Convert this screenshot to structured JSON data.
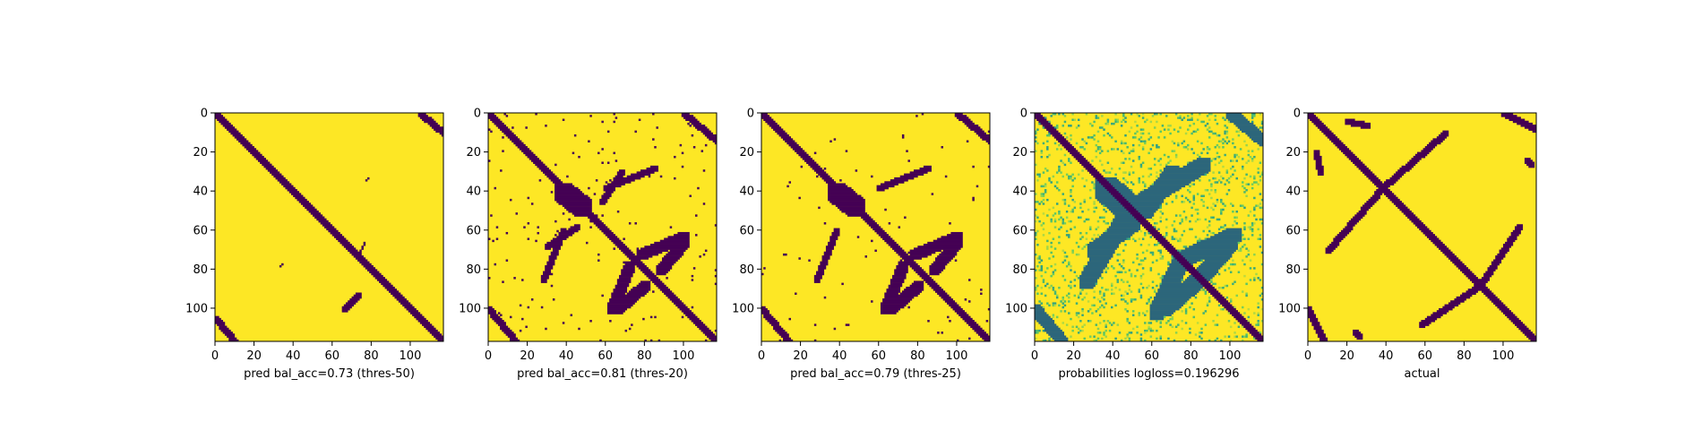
{
  "colors": {
    "low": "#440154",
    "mid_low": "#21918c",
    "mid": "#5ec962",
    "high": "#fde725",
    "frame": "#000000"
  },
  "chart_data": [
    {
      "type": "heatmap",
      "xlabel": "pred bal_acc=0.73 (thres-50)",
      "xlim": [
        0,
        117
      ],
      "ylim": [
        117,
        0
      ],
      "xticks": [
        0,
        20,
        40,
        60,
        80,
        100
      ],
      "yticks": [
        0,
        20,
        40,
        60,
        80,
        100
      ],
      "tick_labels": [
        "0",
        "20",
        "40",
        "60",
        "80",
        "100"
      ],
      "matrix_size": 117,
      "diagonal_width": 2,
      "off_diagonal_segments": [
        {
          "x0": 105,
          "y0": 0,
          "x1": 117,
          "y1": 10,
          "w": 1
        },
        {
          "x0": 0,
          "y0": 105,
          "x1": 10,
          "y1": 117,
          "w": 1
        },
        {
          "x0": 68,
          "y0": 68,
          "x1": 73,
          "y1": 73,
          "w": 1
        },
        {
          "x0": 73,
          "y0": 73,
          "x1": 76,
          "y1": 66,
          "w": 0
        },
        {
          "x0": 66,
          "y0": 100,
          "x1": 73,
          "y1": 93,
          "w": 1
        },
        {
          "x0": 33,
          "y0": 78,
          "x1": 34,
          "y1": 77,
          "w": 0
        },
        {
          "x0": 78,
          "y0": 33,
          "x1": 77,
          "y1": 34,
          "w": 0
        }
      ],
      "noise_level": 0
    },
    {
      "type": "heatmap",
      "xlabel": "pred bal_acc=0.81 (thres-20)",
      "xlim": [
        0,
        117
      ],
      "ylim": [
        117,
        0
      ],
      "xticks": [
        0,
        20,
        40,
        60,
        80,
        100
      ],
      "yticks": [
        0,
        20,
        40,
        60,
        80,
        100
      ],
      "tick_labels": [
        "0",
        "20",
        "40",
        "60",
        "80",
        "100"
      ],
      "matrix_size": 117,
      "diagonal_width": 2,
      "off_diagonal_segments": [
        {
          "x0": 100,
          "y0": 0,
          "x1": 117,
          "y1": 14,
          "w": 1
        },
        {
          "x0": 0,
          "y0": 100,
          "x1": 14,
          "y1": 117,
          "w": 1
        },
        {
          "x0": 30,
          "y0": 68,
          "x1": 45,
          "y1": 58,
          "w": 1
        },
        {
          "x0": 60,
          "y0": 38,
          "x1": 85,
          "y1": 28,
          "w": 1
        },
        {
          "x0": 68,
          "y0": 30,
          "x1": 58,
          "y1": 45,
          "w": 1
        },
        {
          "x0": 38,
          "y0": 60,
          "x1": 28,
          "y1": 85,
          "w": 1
        },
        {
          "x0": 66,
          "y0": 100,
          "x1": 80,
          "y1": 88,
          "w": 2
        },
        {
          "x0": 100,
          "y0": 66,
          "x1": 88,
          "y1": 80,
          "w": 2
        },
        {
          "x0": 78,
          "y0": 72,
          "x1": 100,
          "y1": 63,
          "w": 2
        },
        {
          "x0": 72,
          "y0": 78,
          "x1": 63,
          "y1": 100,
          "w": 2
        },
        {
          "x0": 38,
          "y0": 40,
          "x1": 48,
          "y1": 48,
          "w": 4
        }
      ],
      "noise_level": 2
    },
    {
      "type": "heatmap",
      "xlabel": "pred bal_acc=0.79 (thres-25)",
      "xlim": [
        0,
        117
      ],
      "ylim": [
        117,
        0
      ],
      "xticks": [
        0,
        20,
        40,
        60,
        80,
        100
      ],
      "yticks": [
        0,
        20,
        40,
        60,
        80,
        100
      ],
      "tick_labels": [
        "0",
        "20",
        "40",
        "60",
        "80",
        "100"
      ],
      "matrix_size": 117,
      "diagonal_width": 2,
      "off_diagonal_segments": [
        {
          "x0": 100,
          "y0": 0,
          "x1": 117,
          "y1": 14,
          "w": 1
        },
        {
          "x0": 0,
          "y0": 100,
          "x1": 14,
          "y1": 117,
          "w": 1
        },
        {
          "x0": 60,
          "y0": 38,
          "x1": 85,
          "y1": 28,
          "w": 1
        },
        {
          "x0": 38,
          "y0": 60,
          "x1": 28,
          "y1": 85,
          "w": 1
        },
        {
          "x0": 66,
          "y0": 100,
          "x1": 80,
          "y1": 88,
          "w": 2
        },
        {
          "x0": 100,
          "y0": 66,
          "x1": 88,
          "y1": 80,
          "w": 2
        },
        {
          "x0": 78,
          "y0": 72,
          "x1": 100,
          "y1": 63,
          "w": 2
        },
        {
          "x0": 72,
          "y0": 78,
          "x1": 63,
          "y1": 100,
          "w": 2
        },
        {
          "x0": 38,
          "y0": 40,
          "x1": 48,
          "y1": 48,
          "w": 4
        }
      ],
      "noise_level": 1
    },
    {
      "type": "heatmap",
      "xlabel": "probabilities logloss=0.196296",
      "xlim": [
        0,
        117
      ],
      "ylim": [
        117,
        0
      ],
      "xticks": [
        0,
        20,
        40,
        60,
        80,
        100
      ],
      "yticks": [
        0,
        20,
        40,
        60,
        80,
        100
      ],
      "tick_labels": [
        "0",
        "20",
        "40",
        "60",
        "80",
        "100"
      ],
      "matrix_size": 117,
      "diagonal_width": 2,
      "off_diagonal_segments": [
        {
          "x0": 100,
          "y0": 0,
          "x1": 117,
          "y1": 14,
          "w": 2
        },
        {
          "x0": 0,
          "y0": 100,
          "x1": 14,
          "y1": 117,
          "w": 2
        },
        {
          "x0": 30,
          "y0": 70,
          "x1": 50,
          "y1": 56,
          "w": 3
        },
        {
          "x0": 56,
          "y0": 44,
          "x1": 86,
          "y1": 26,
          "w": 3
        },
        {
          "x0": 70,
          "y0": 30,
          "x1": 56,
          "y1": 50,
          "w": 3
        },
        {
          "x0": 44,
          "y0": 56,
          "x1": 26,
          "y1": 86,
          "w": 3
        },
        {
          "x0": 66,
          "y0": 100,
          "x1": 82,
          "y1": 86,
          "w": 3
        },
        {
          "x0": 100,
          "y0": 66,
          "x1": 86,
          "y1": 82,
          "w": 3
        },
        {
          "x0": 76,
          "y0": 74,
          "x1": 102,
          "y1": 62,
          "w": 3
        },
        {
          "x0": 74,
          "y0": 76,
          "x1": 62,
          "y1": 102,
          "w": 3
        },
        {
          "x0": 36,
          "y0": 38,
          "x1": 50,
          "y1": 50,
          "w": 5
        }
      ],
      "noise_level": 3,
      "continuous": true
    },
    {
      "type": "heatmap",
      "xlabel": "actual",
      "xlim": [
        0,
        117
      ],
      "ylim": [
        117,
        0
      ],
      "xticks": [
        0,
        20,
        40,
        60,
        80,
        100
      ],
      "yticks": [
        0,
        20,
        40,
        60,
        80,
        100
      ],
      "tick_labels": [
        "0",
        "20",
        "40",
        "60",
        "80",
        "100"
      ],
      "matrix_size": 117,
      "diagonal_width": 2,
      "off_diagonal_segments": [
        {
          "x0": 100,
          "y0": 0,
          "x1": 117,
          "y1": 8,
          "w": 1
        },
        {
          "x0": 0,
          "y0": 100,
          "x1": 8,
          "y1": 117,
          "w": 1
        },
        {
          "x0": 10,
          "y0": 70,
          "x1": 38,
          "y1": 38,
          "w": 1
        },
        {
          "x0": 38,
          "y0": 38,
          "x1": 70,
          "y1": 10,
          "w": 1
        },
        {
          "x0": 70,
          "y0": 10,
          "x1": 38,
          "y1": 38,
          "w": 1
        },
        {
          "x0": 38,
          "y0": 38,
          "x1": 10,
          "y1": 70,
          "w": 1
        },
        {
          "x0": 58,
          "y0": 108,
          "x1": 88,
          "y1": 88,
          "w": 1
        },
        {
          "x0": 88,
          "y0": 88,
          "x1": 108,
          "y1": 58,
          "w": 1
        },
        {
          "x0": 108,
          "y0": 58,
          "x1": 88,
          "y1": 88,
          "w": 1
        },
        {
          "x0": 88,
          "y0": 88,
          "x1": 58,
          "y1": 108,
          "w": 1
        },
        {
          "x0": 4,
          "y0": 20,
          "x1": 6,
          "y1": 30,
          "w": 1
        },
        {
          "x0": 20,
          "y0": 4,
          "x1": 30,
          "y1": 6,
          "w": 1
        },
        {
          "x0": 112,
          "y0": 24,
          "x1": 114,
          "y1": 26,
          "w": 1
        },
        {
          "x0": 24,
          "y0": 112,
          "x1": 26,
          "y1": 114,
          "w": 1
        }
      ],
      "noise_level": 0
    }
  ]
}
